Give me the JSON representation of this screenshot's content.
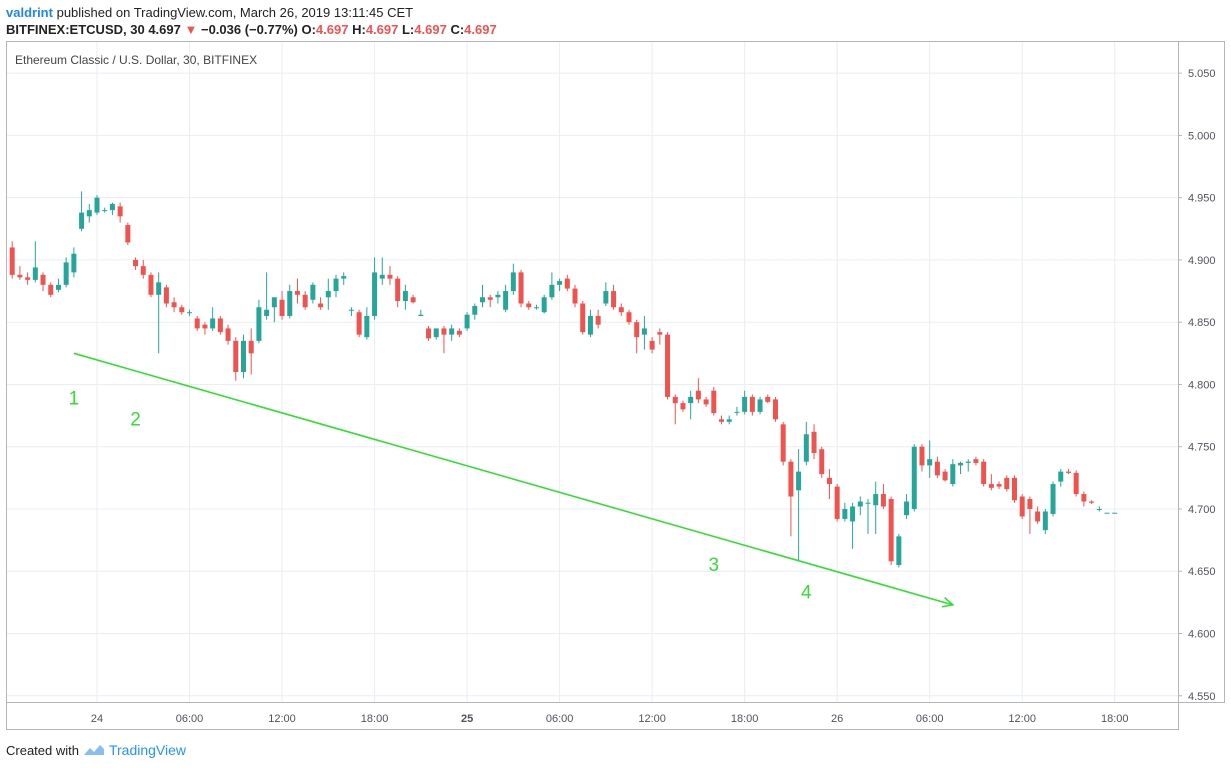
{
  "header": {
    "user": "valdrint",
    "published_text": "published on TradingView.com, March 26, 2019 13:11:45 CET",
    "symbol": "BITFINEX:ETCUSD, 30",
    "last_price": "4.697",
    "change": "−0.036 (−0.77%)",
    "ohlc_o_label": "O:",
    "ohlc_o": "4.697",
    "ohlc_h_label": "H:",
    "ohlc_h": "4.697",
    "ohlc_l_label": "L:",
    "ohlc_l": "4.697",
    "ohlc_c_label": "C:",
    "ohlc_c": "4.697"
  },
  "footer": {
    "created_with": "Created with",
    "brand": "TradingView"
  },
  "colors": {
    "up": "#26a69a",
    "down": "#ef5350",
    "trendline": "#33dd33",
    "grid": "#e9eef3",
    "axis_text": "#50535e"
  },
  "chart_data": {
    "type": "candlestick",
    "title": "Ethereum Classic / U.S. Dollar, 30, BITFINEX",
    "ylim": [
      4.545,
      5.075
    ],
    "y_ticks": [
      "4.550",
      "4.600",
      "4.650",
      "4.700",
      "4.750",
      "4.800",
      "4.850",
      "4.900",
      "4.950",
      "5.000",
      "5.050"
    ],
    "x_ticks": [
      {
        "label": "24",
        "bar": 0,
        "bold": false
      },
      {
        "label": "06:00",
        "bar": 12,
        "bold": false
      },
      {
        "label": "12:00",
        "bar": 24,
        "bold": false
      },
      {
        "label": "18:00",
        "bar": 36,
        "bold": false
      },
      {
        "label": "25",
        "bar": 48,
        "bold": true
      },
      {
        "label": "06:00",
        "bar": 60,
        "bold": false
      },
      {
        "label": "12:00",
        "bar": 72,
        "bold": false
      },
      {
        "label": "18:00",
        "bar": 84,
        "bold": false
      },
      {
        "label": "26",
        "bar": 96,
        "bold": false
      },
      {
        "label": "06:00",
        "bar": 108,
        "bold": false
      },
      {
        "label": "12:00",
        "bar": 120,
        "bold": false
      },
      {
        "label": "18:00",
        "bar": 132,
        "bold": false
      }
    ],
    "first_bar_index": -11,
    "candles": [
      [
        4.91,
        4.915,
        4.885,
        4.888
      ],
      [
        4.888,
        4.895,
        4.884,
        4.886
      ],
      [
        4.886,
        4.89,
        4.88,
        4.884
      ],
      [
        4.884,
        4.915,
        4.882,
        4.894
      ],
      [
        4.888,
        4.89,
        4.875,
        4.88
      ],
      [
        4.88,
        4.882,
        4.87,
        4.872
      ],
      [
        4.876,
        4.885,
        4.874,
        4.88
      ],
      [
        4.88,
        4.902,
        4.878,
        4.898
      ],
      [
        4.89,
        4.91,
        4.886,
        4.905
      ],
      [
        4.925,
        4.955,
        4.923,
        4.938
      ],
      [
        4.935,
        4.945,
        4.93,
        4.94
      ],
      [
        4.938,
        4.952,
        4.936,
        4.95
      ],
      [
        4.94,
        4.942,
        4.938,
        4.94
      ],
      [
        4.94,
        4.946,
        4.936,
        4.945
      ],
      [
        4.943,
        4.946,
        4.93,
        4.935
      ],
      [
        4.928,
        4.93,
        4.912,
        4.914
      ],
      [
        4.9,
        4.902,
        4.892,
        4.895
      ],
      [
        4.895,
        4.9,
        4.885,
        4.888
      ],
      [
        4.888,
        4.89,
        4.87,
        4.872
      ],
      [
        4.872,
        4.89,
        4.825,
        4.882
      ],
      [
        4.878,
        4.88,
        4.862,
        4.865
      ],
      [
        4.866,
        4.87,
        4.858,
        4.862
      ],
      [
        4.862,
        4.864,
        4.856,
        4.858
      ],
      [
        4.858,
        4.86,
        4.855,
        4.858
      ],
      [
        4.853,
        4.855,
        4.843,
        4.845
      ],
      [
        4.848,
        4.85,
        4.84,
        4.845
      ],
      [
        4.845,
        4.862,
        4.843,
        4.853
      ],
      [
        4.853,
        4.855,
        4.84,
        4.842
      ],
      [
        4.845,
        4.848,
        4.832,
        4.835
      ],
      [
        4.835,
        4.838,
        4.803,
        4.81
      ],
      [
        4.81,
        4.84,
        4.805,
        4.835
      ],
      [
        4.835,
        4.845,
        4.808,
        4.825
      ],
      [
        4.835,
        4.868,
        4.833,
        4.862
      ],
      [
        4.855,
        4.89,
        4.852,
        4.86
      ],
      [
        4.862,
        4.87,
        4.85,
        4.87
      ],
      [
        4.868,
        4.875,
        4.852,
        4.855
      ],
      [
        4.855,
        4.88,
        4.853,
        4.875
      ],
      [
        4.875,
        4.885,
        4.865,
        4.872
      ],
      [
        4.872,
        4.875,
        4.86,
        4.862
      ],
      [
        4.868,
        4.882,
        4.865,
        4.88
      ],
      [
        4.865,
        4.87,
        4.86,
        4.862
      ],
      [
        4.87,
        4.885,
        4.86,
        4.875
      ],
      [
        4.875,
        4.888,
        4.87,
        4.885
      ],
      [
        4.885,
        4.89,
        4.88,
        4.887
      ],
      [
        4.86,
        4.862,
        4.855,
        4.86
      ],
      [
        4.858,
        4.86,
        4.838,
        4.84
      ],
      [
        4.838,
        4.862,
        4.836,
        4.855
      ],
      [
        4.855,
        4.902,
        4.852,
        4.89
      ],
      [
        4.885,
        4.902,
        4.88,
        4.888
      ],
      [
        4.888,
        4.895,
        4.88,
        4.885
      ],
      [
        4.885,
        4.887,
        4.862,
        4.867
      ],
      [
        4.867,
        4.88,
        4.86,
        4.875
      ],
      [
        4.87,
        4.872,
        4.865,
        4.866
      ],
      [
        4.855,
        4.86,
        4.855,
        4.856
      ],
      [
        4.845,
        4.847,
        4.835,
        4.837
      ],
      [
        4.838,
        4.845,
        4.836,
        4.845
      ],
      [
        4.845,
        4.847,
        4.825,
        4.84
      ],
      [
        4.84,
        4.848,
        4.835,
        4.845
      ],
      [
        4.843,
        4.845,
        4.838,
        4.84
      ],
      [
        4.845,
        4.858,
        4.843,
        4.856
      ],
      [
        4.856,
        4.865,
        4.852,
        4.863
      ],
      [
        4.866,
        4.88,
        4.862,
        4.87
      ],
      [
        4.87,
        4.872,
        4.862,
        4.868
      ],
      [
        4.87,
        4.875,
        4.865,
        4.872
      ],
      [
        4.86,
        4.88,
        4.858,
        4.875
      ],
      [
        4.875,
        4.897,
        4.872,
        4.89
      ],
      [
        4.89,
        4.892,
        4.862,
        4.865
      ],
      [
        4.865,
        4.867,
        4.86,
        4.862
      ],
      [
        4.862,
        4.864,
        4.86,
        4.862
      ],
      [
        4.858,
        4.872,
        4.857,
        4.87
      ],
      [
        4.87,
        4.89,
        4.868,
        4.88
      ],
      [
        4.88,
        4.885,
        4.875,
        4.883
      ],
      [
        4.885,
        4.888,
        4.875,
        4.877
      ],
      [
        4.877,
        4.88,
        4.862,
        4.865
      ],
      [
        4.865,
        4.867,
        4.84,
        4.842
      ],
      [
        4.84,
        4.86,
        4.838,
        4.855
      ],
      [
        4.855,
        4.86,
        4.845,
        4.848
      ],
      [
        4.865,
        4.882,
        4.863,
        4.875
      ],
      [
        4.875,
        4.88,
        4.86,
        4.862
      ],
      [
        4.862,
        4.865,
        4.855,
        4.858
      ],
      [
        4.858,
        4.86,
        4.848,
        4.85
      ],
      [
        4.85,
        4.852,
        4.825,
        4.838
      ],
      [
        4.84,
        4.855,
        4.828,
        4.845
      ],
      [
        4.835,
        4.838,
        4.825,
        4.828
      ],
      [
        4.842,
        4.845,
        4.832,
        4.84
      ],
      [
        4.84,
        4.842,
        4.788,
        4.79
      ],
      [
        4.79,
        4.792,
        4.768,
        4.785
      ],
      [
        4.785,
        4.787,
        4.778,
        4.78
      ],
      [
        4.785,
        4.795,
        4.772,
        4.79
      ],
      [
        4.795,
        4.805,
        4.785,
        4.788
      ],
      [
        4.788,
        4.79,
        4.782,
        4.784
      ],
      [
        4.795,
        4.798,
        4.775,
        4.777
      ],
      [
        4.772,
        4.775,
        4.768,
        4.77
      ],
      [
        4.77,
        4.775,
        4.768,
        4.772
      ],
      [
        4.778,
        4.782,
        4.775,
        4.778
      ],
      [
        4.778,
        4.795,
        4.776,
        4.79
      ],
      [
        4.79,
        4.792,
        4.775,
        4.778
      ],
      [
        4.778,
        4.79,
        4.776,
        4.788
      ],
      [
        4.79,
        4.792,
        4.785,
        4.786
      ],
      [
        4.788,
        4.79,
        4.77,
        4.772
      ],
      [
        4.768,
        4.77,
        4.735,
        4.738
      ],
      [
        4.738,
        4.74,
        4.678,
        4.71
      ],
      [
        4.715,
        4.748,
        4.658,
        4.73
      ],
      [
        4.738,
        4.77,
        4.735,
        4.76
      ],
      [
        4.762,
        4.768,
        4.74,
        4.745
      ],
      [
        4.748,
        4.75,
        4.725,
        4.728
      ],
      [
        4.725,
        4.732,
        4.708,
        4.72
      ],
      [
        4.718,
        4.72,
        4.69,
        4.692
      ],
      [
        4.692,
        4.705,
        4.69,
        4.7
      ],
      [
        4.69,
        4.705,
        4.668,
        4.702
      ],
      [
        4.702,
        4.71,
        4.695,
        4.706
      ],
      [
        4.705,
        4.708,
        4.68,
        4.705
      ],
      [
        4.703,
        4.722,
        4.68,
        4.712
      ],
      [
        4.712,
        4.72,
        4.7,
        4.702
      ],
      [
        4.708,
        4.71,
        4.655,
        4.658
      ],
      [
        4.655,
        4.68,
        4.653,
        4.678
      ],
      [
        4.695,
        4.712,
        4.692,
        4.706
      ],
      [
        4.7,
        4.752,
        4.698,
        4.75
      ],
      [
        4.75,
        4.752,
        4.73,
        4.735
      ],
      [
        4.735,
        4.755,
        4.725,
        4.74
      ],
      [
        4.738,
        4.742,
        4.725,
        4.727
      ],
      [
        4.73,
        4.732,
        4.722,
        4.723
      ],
      [
        4.72,
        4.74,
        4.718,
        4.736
      ],
      [
        4.735,
        4.738,
        4.728,
        4.737
      ],
      [
        4.737,
        4.74,
        4.73,
        4.738
      ],
      [
        4.74,
        4.742,
        4.735,
        4.737
      ],
      [
        4.738,
        4.74,
        4.718,
        4.72
      ],
      [
        4.72,
        4.728,
        4.715,
        4.717
      ],
      [
        4.72,
        4.722,
        4.716,
        4.718
      ],
      [
        4.725,
        4.727,
        4.714,
        4.716
      ],
      [
        4.725,
        4.727,
        4.705,
        4.707
      ],
      [
        4.71,
        4.712,
        4.692,
        4.694
      ],
      [
        4.708,
        4.71,
        4.68,
        4.7
      ],
      [
        4.698,
        4.702,
        4.688,
        4.69
      ],
      [
        4.683,
        4.7,
        4.68,
        4.698
      ],
      [
        4.696,
        4.722,
        4.694,
        4.72
      ],
      [
        4.722,
        4.732,
        4.718,
        4.73
      ],
      [
        4.73,
        4.732,
        4.728,
        4.729
      ],
      [
        4.729,
        4.731,
        4.71,
        4.712
      ],
      [
        4.712,
        4.714,
        4.702,
        4.706
      ],
      [
        4.706,
        4.707,
        4.704,
        4.705
      ],
      [
        4.7,
        4.702,
        4.698,
        4.7
      ],
      [
        4.697,
        4.697,
        4.697,
        4.697
      ],
      [
        4.697,
        4.697,
        4.697,
        4.697
      ]
    ],
    "trendline": {
      "from_bar": -3,
      "from_price": 4.825,
      "to_bar": 111,
      "to_price": 4.623,
      "arrow": true
    },
    "annotations": [
      {
        "text": "1",
        "bar": -3,
        "price": 4.784
      },
      {
        "text": "2",
        "bar": 5,
        "price": 4.767
      },
      {
        "text": "3",
        "bar": 80,
        "price": 4.65
      },
      {
        "text": "4",
        "bar": 92,
        "price": 4.628
      }
    ]
  }
}
